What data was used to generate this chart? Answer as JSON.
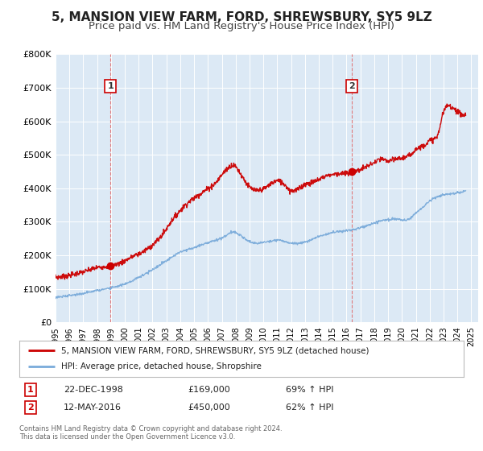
{
  "title": "5, MANSION VIEW FARM, FORD, SHREWSBURY, SY5 9LZ",
  "subtitle": "Price paid vs. HM Land Registry's House Price Index (HPI)",
  "background_color": "#ffffff",
  "plot_bg_color": "#dce9f5",
  "grid_color": "#ffffff",
  "ylim": [
    0,
    800000
  ],
  "yticks": [
    0,
    100000,
    200000,
    300000,
    400000,
    500000,
    600000,
    700000,
    800000
  ],
  "ytick_labels": [
    "£0",
    "£100K",
    "£200K",
    "£300K",
    "£400K",
    "£500K",
    "£600K",
    "£700K",
    "£800K"
  ],
  "xmin": 1995.0,
  "xmax": 2025.5,
  "xticks": [
    1995,
    1996,
    1997,
    1998,
    1999,
    2000,
    2001,
    2002,
    2003,
    2004,
    2005,
    2006,
    2007,
    2008,
    2009,
    2010,
    2011,
    2012,
    2013,
    2014,
    2015,
    2016,
    2017,
    2018,
    2019,
    2020,
    2021,
    2022,
    2023,
    2024,
    2025
  ],
  "sale1_x": 1998.97,
  "sale1_y": 169000,
  "sale2_x": 2016.36,
  "sale2_y": 450000,
  "sale_color": "#cc0000",
  "hpi_color": "#7aabda",
  "title_fontsize": 11,
  "subtitle_fontsize": 9.5,
  "legend_label1": "5, MANSION VIEW FARM, FORD, SHREWSBURY, SY5 9LZ (detached house)",
  "legend_label2": "HPI: Average price, detached house, Shropshire",
  "table_row1": [
    "1",
    "22-DEC-1998",
    "£169,000",
    "69% ↑ HPI"
  ],
  "table_row2": [
    "2",
    "12-MAY-2016",
    "£450,000",
    "62% ↑ HPI"
  ],
  "footer1": "Contains HM Land Registry data © Crown copyright and database right 2024.",
  "footer2": "This data is licensed under the Open Government Licence v3.0."
}
